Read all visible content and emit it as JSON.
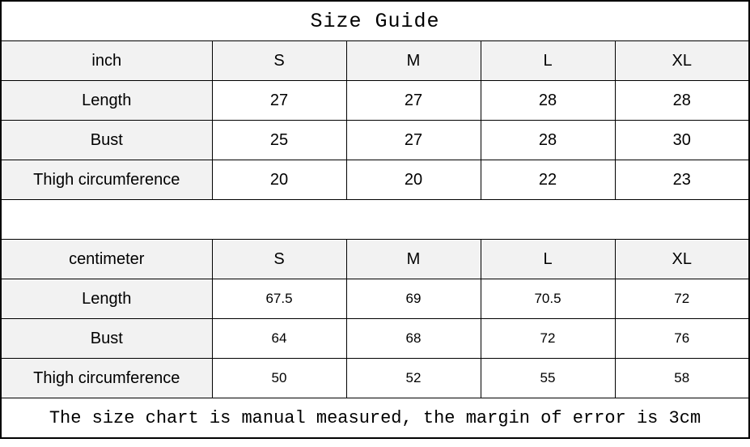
{
  "title": "Size Guide",
  "inch_table": {
    "header": [
      "inch",
      "S",
      "M",
      "L",
      "XL"
    ],
    "rows": [
      {
        "label": "Length",
        "values": [
          "27",
          "27",
          "28",
          "28"
        ]
      },
      {
        "label": "Bust",
        "values": [
          "25",
          "27",
          "28",
          "30"
        ]
      },
      {
        "label": "Thigh circumference",
        "values": [
          "20",
          "20",
          "22",
          "23"
        ]
      }
    ]
  },
  "cm_table": {
    "header": [
      "centimeter",
      "S",
      "M",
      "L",
      "XL"
    ],
    "rows": [
      {
        "label": "Length",
        "values": [
          "67.5",
          "69",
          "70.5",
          "72"
        ]
      },
      {
        "label": "Bust",
        "values": [
          "64",
          "68",
          "72",
          "76"
        ]
      },
      {
        "label": "Thigh circumference",
        "values": [
          "50",
          "52",
          "55",
          "58"
        ]
      }
    ]
  },
  "note": "The size chart is manual measured, the margin of error is 3cm"
}
